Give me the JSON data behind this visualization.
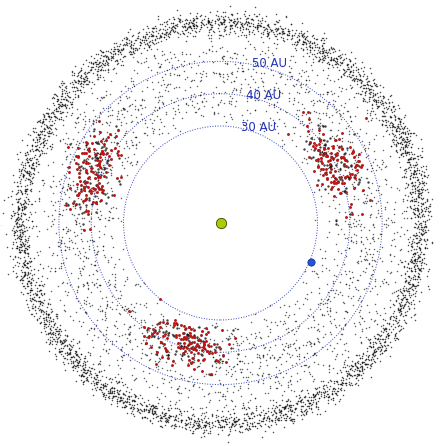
{
  "background_color": "#ffffff",
  "circle_radii": [
    30,
    40,
    50
  ],
  "circle_labels": [
    "30 AU",
    "40 AU",
    "50 AU"
  ],
  "circle_label_color": "#2233bb",
  "circle_color": "#3344bb",
  "circle_lw": 0.7,
  "sun_color": "#aacc00",
  "sun_x": 0.0,
  "sun_y": 0.0,
  "sun_size": 55,
  "neptune_color": "#2255dd",
  "neptune_x": 28.0,
  "neptune_y": -12.0,
  "neptune_size": 28,
  "tno_color_black": "#111111",
  "tno_color_red": "#cc1111",
  "tno_size_small": 1.2,
  "tno_size_red": 4.0,
  "seed": 42,
  "label_angles_deg": [
    10,
    10,
    10
  ],
  "label_offsets": [
    1.5,
    1.5,
    1.5
  ],
  "xlim": [
    -68,
    68
  ],
  "ylim": [
    -68,
    68
  ],
  "figsize": [
    4.41,
    4.46
  ],
  "dpi": 100
}
